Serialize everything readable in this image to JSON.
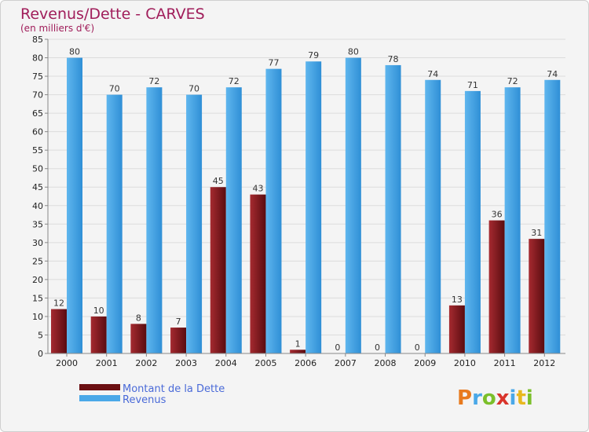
{
  "chart_data": {
    "type": "bar",
    "title": "Revenus/Dette - CARVES",
    "subtitle": "(en milliers d'€)",
    "categories": [
      "2000",
      "2001",
      "2002",
      "2003",
      "2004",
      "2005",
      "2006",
      "2007",
      "2008",
      "2009",
      "2010",
      "2011",
      "2012"
    ],
    "series": [
      {
        "name": "Montant de la Dette",
        "color": "#7a1a1e",
        "values": [
          12,
          10,
          8,
          7,
          45,
          43,
          1,
          0,
          0,
          0,
          13,
          36,
          31
        ]
      },
      {
        "name": "Revenus",
        "color": "#4aa8e8",
        "values": [
          80,
          70,
          72,
          70,
          72,
          77,
          79,
          80,
          78,
          74,
          71,
          72,
          74
        ]
      }
    ],
    "ylim": [
      0,
      85
    ],
    "ytick_step": 5,
    "grid": true,
    "legend": "bottom-left"
  },
  "branding": {
    "letters": [
      "P",
      "r",
      "o",
      "x",
      "i",
      "t",
      "i"
    ],
    "colors": [
      "#e87a1e",
      "#4aa8e8",
      "#7bbf2a",
      "#d9342b",
      "#4aa8e8",
      "#e8b81e",
      "#7bbf2a"
    ]
  }
}
